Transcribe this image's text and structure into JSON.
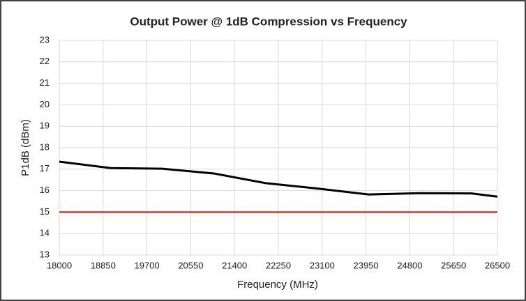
{
  "chart_data": {
    "type": "line",
    "title": "Output Power @ 1dB Compression vs Frequency",
    "x_label": "Frequency (MHz)",
    "y_label": "P1dB (dBm)",
    "x": [
      18000,
      19000,
      20000,
      21000,
      22000,
      23000,
      24000,
      25000,
      26000,
      26500
    ],
    "series": [
      {
        "color": "#000000",
        "values": [
          17.35,
          17.05,
          17.02,
          16.8,
          16.35,
          16.1,
          15.82,
          15.88,
          15.87,
          15.72
        ]
      },
      {
        "color": "#e00000",
        "values": [
          15,
          15,
          15,
          15,
          15,
          15,
          15,
          15,
          15,
          15
        ]
      }
    ],
    "xlim": [
      18000,
      26500
    ],
    "xticks": [
      18000,
      18850,
      19700,
      20550,
      21400,
      22250,
      23100,
      23950,
      24800,
      25650,
      26500
    ],
    "ylim": [
      13,
      23
    ],
    "yticks": [
      13,
      14,
      15,
      16,
      17,
      18,
      19,
      20,
      21,
      22,
      23
    ],
    "grid": true
  }
}
